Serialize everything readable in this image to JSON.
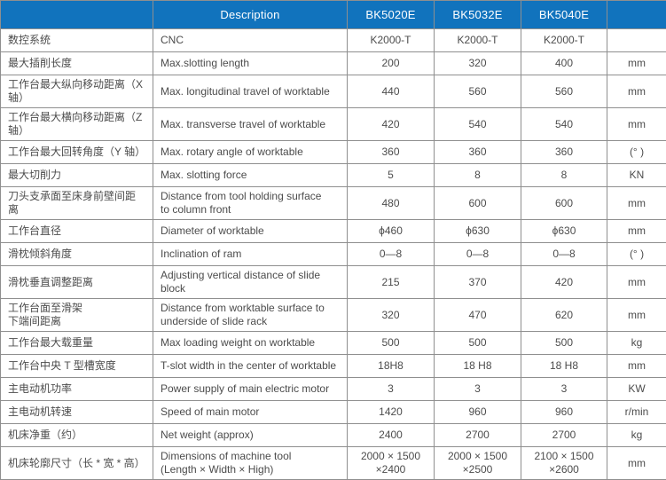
{
  "header": {
    "parameter": "",
    "description": "Description",
    "models": [
      "BK5020E",
      "BK5032E",
      "BK5040E"
    ],
    "unit": ""
  },
  "rows": [
    {
      "cn": "数控系统",
      "en": "CNC",
      "values": [
        "K2000-T",
        "K2000-T",
        "K2000-T"
      ],
      "unit": ""
    },
    {
      "cn": "最大插削长度",
      "en": "Max.slotting length",
      "values": [
        "200",
        "320",
        "400"
      ],
      "unit": "mm"
    },
    {
      "cn": "工作台最大纵向移动距离（X 轴）",
      "en": "Max. longitudinal travel of worktable",
      "values": [
        "440",
        "560",
        "560"
      ],
      "unit": "mm"
    },
    {
      "cn": "工作台最大横向移动距离（Z 轴）",
      "en": "Max. transverse travel of worktable",
      "values": [
        "420",
        "540",
        "540"
      ],
      "unit": "mm"
    },
    {
      "cn": "工作台最大回转角度（Y 轴）",
      "en": "Max. rotary angle of worktable",
      "values": [
        "360",
        "360",
        "360"
      ],
      "unit": "(° )"
    },
    {
      "cn": "最大切削力",
      "en": "Max. slotting force",
      "values": [
        "5",
        "8",
        "8"
      ],
      "unit": "KN"
    },
    {
      "cn": "刀头支承面至床身前壁间距离",
      "en": "Distance from tool holding surface\nto column front",
      "values": [
        "480",
        "600",
        "600"
      ],
      "unit": "mm"
    },
    {
      "cn": "工作台直径",
      "en": "Diameter of worktable",
      "values": [
        "ϕ460",
        "ϕ630",
        "ϕ630"
      ],
      "unit": "mm"
    },
    {
      "cn": "滑枕倾斜角度",
      "en": "Inclination of ram",
      "values": [
        "0—8",
        "0—8",
        "0—8"
      ],
      "unit": "(° )"
    },
    {
      "cn": "滑枕垂直调整距离",
      "en": "Adjusting vertical distance of slide block",
      "values": [
        "215",
        "370",
        "420"
      ],
      "unit": "mm"
    },
    {
      "cn": "工作台面至滑架\n下端间距离",
      "en": "Distance from worktable surface to\nunderside of slide rack",
      "values": [
        "320",
        "470",
        "620"
      ],
      "unit": "mm"
    },
    {
      "cn": "工作台最大载重量",
      "en": "Max loading weight on worktable",
      "values": [
        "500",
        "500",
        "500"
      ],
      "unit": "kg"
    },
    {
      "cn": "工作台中央 T 型槽宽度",
      "en": "T-slot width in the center of worktable",
      "values": [
        "18H8",
        "18 H8",
        "18 H8"
      ],
      "unit": "mm"
    },
    {
      "cn": "主电动机功率",
      "en": "Power supply of main electric motor",
      "values": [
        "3",
        "3",
        "3"
      ],
      "unit": "KW"
    },
    {
      "cn": "主电动机转速",
      "en": "Speed of main motor",
      "values": [
        "1420",
        "960",
        "960"
      ],
      "unit": "r/min"
    },
    {
      "cn": "机床净重（约）",
      "en": "Net weight (approx)",
      "values": [
        "2400",
        "2700",
        "2700"
      ],
      "unit": "kg"
    },
    {
      "cn": "机床轮廓尺寸（长 * 宽 * 高）",
      "en": "Dimensions of machine tool\n(Length × Width × High)",
      "values": [
        "2000 × 1500\n×2400",
        "2000 × 1500\n×2500",
        "2100 × 1500\n×2600"
      ],
      "unit": "mm"
    }
  ],
  "colors": {
    "header_bg": "#1173bd",
    "header_text": "#ffffff",
    "border": "#8f8f8f",
    "body_text": "#4c4c4c"
  }
}
